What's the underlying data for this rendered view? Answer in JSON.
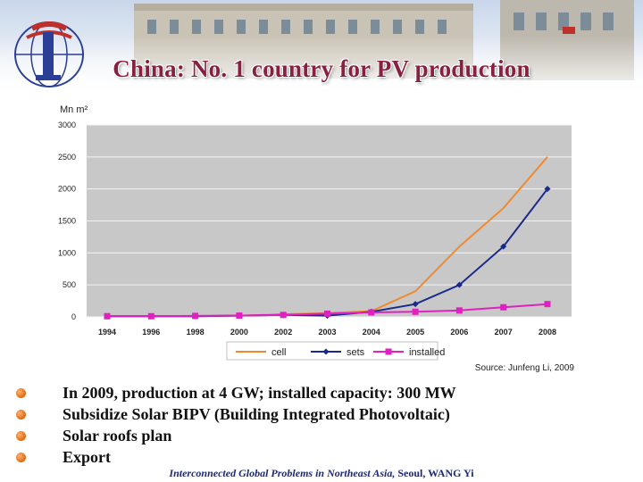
{
  "slide": {
    "title": "China: No. 1 country for PV production",
    "bullets": [
      "In 2009, production at 4 GW; installed capacity: 300 MW",
      "Subsidize Solar BIPV (Building Integrated Photovoltaic)",
      "Solar roofs plan",
      "Export"
    ],
    "footer": {
      "italic": "Interconnected Global Problems in Northeast Asia,",
      "rest": "Seoul, WANG Yi"
    }
  },
  "colors": {
    "title": "#8a2040",
    "cell": "#f08a30",
    "sets": "#1a2a8a",
    "installed": "#e020c0",
    "plot_bg": "#c8c8c8"
  },
  "chart_data": {
    "type": "line",
    "unit_label": "Mn m²",
    "source": "Source: Junfeng Li, 2009",
    "x": [
      "1994",
      "1996",
      "1998",
      "2000",
      "2002",
      "2003",
      "2004",
      "2005",
      "2006",
      "2007",
      "2008"
    ],
    "ylim": [
      0,
      3000
    ],
    "yticks": [
      "0",
      "500",
      "1000",
      "1500",
      "2000",
      "2500",
      "3000"
    ],
    "grid": true,
    "legend_position": "bottom",
    "series": [
      {
        "name": "cell",
        "values": [
          10,
          10,
          10,
          20,
          40,
          60,
          90,
          400,
          1100,
          1700,
          2500
        ],
        "marker": "none"
      },
      {
        "name": "sets",
        "values": [
          10,
          10,
          10,
          20,
          30,
          20,
          80,
          200,
          500,
          1100,
          2000
        ],
        "marker": "diamond"
      },
      {
        "name": "installed",
        "values": [
          10,
          10,
          15,
          20,
          30,
          50,
          70,
          80,
          100,
          150,
          200
        ],
        "marker": "square"
      }
    ]
  }
}
